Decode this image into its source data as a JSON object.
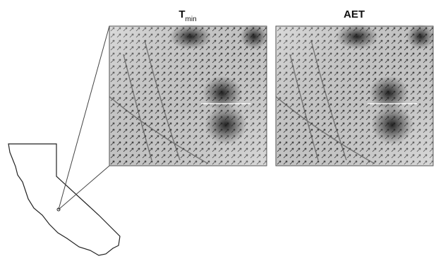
{
  "panels": [
    {
      "title": "T",
      "title_subscript": "min"
    },
    {
      "title": "AET"
    }
  ]
}
